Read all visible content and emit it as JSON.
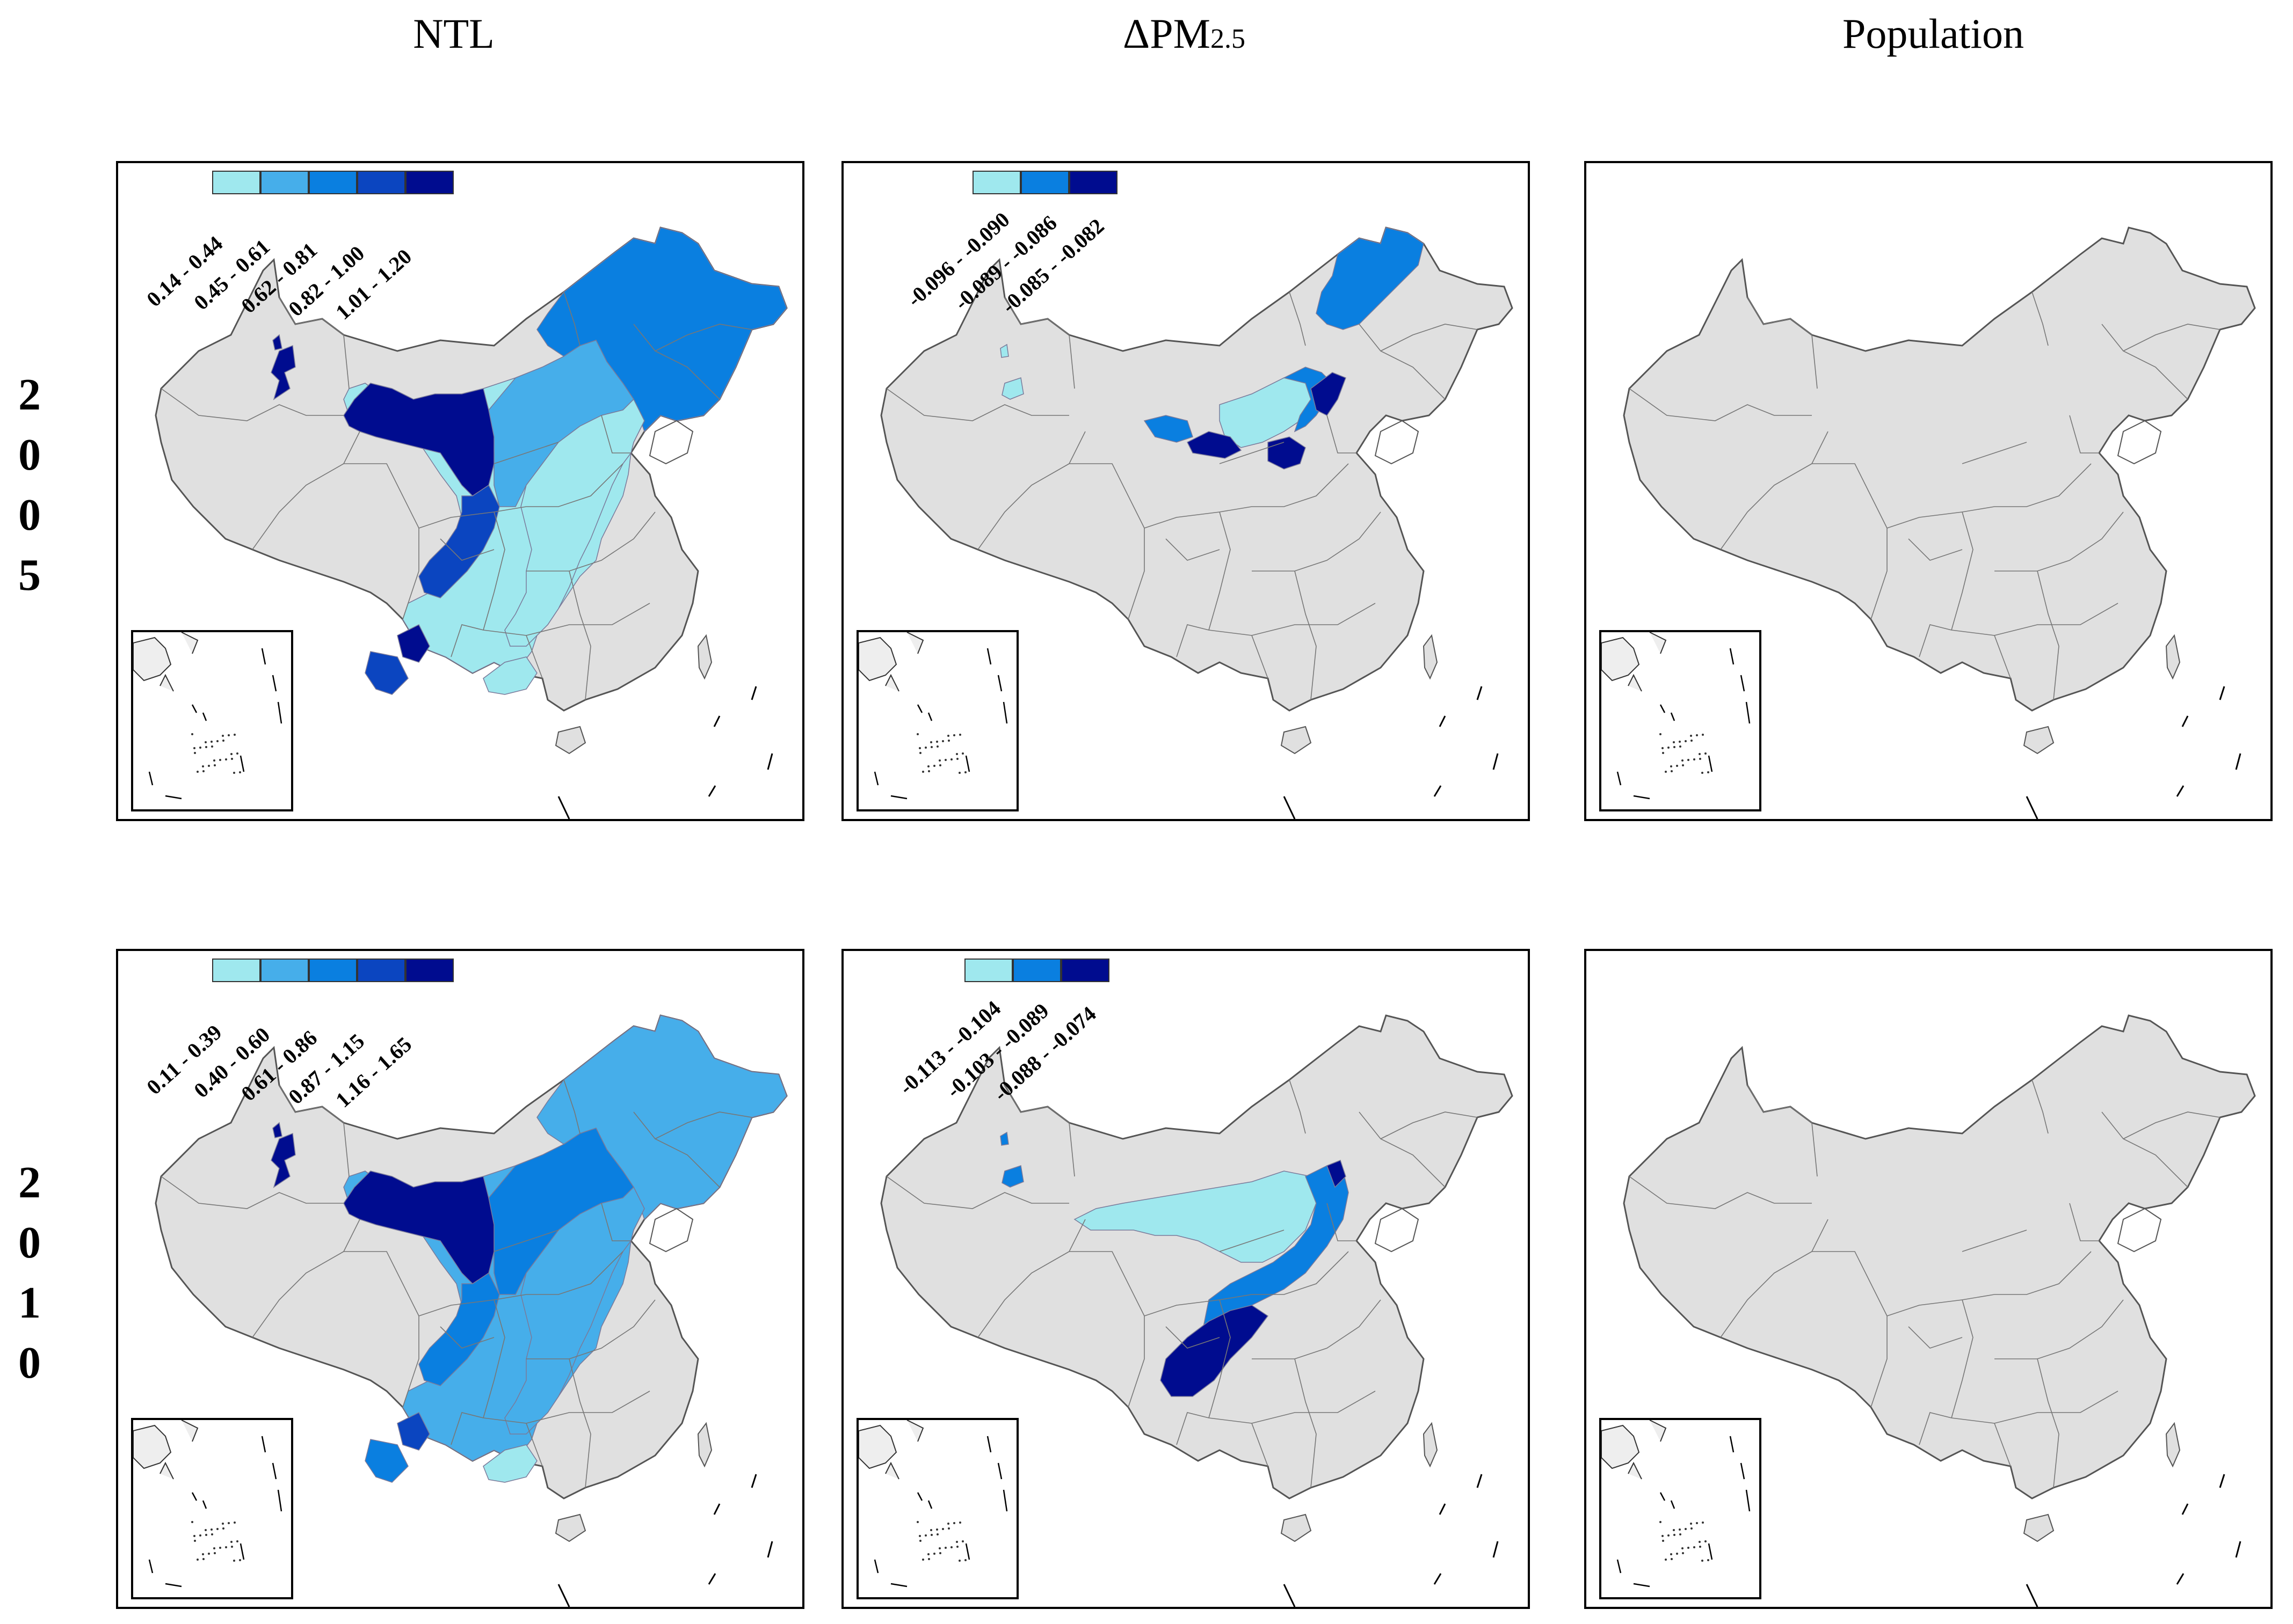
{
  "column_titles": {
    "ntl": "NTL",
    "delta_symbol": "ΔPM",
    "delta_subscript": "2.5",
    "population": "Population"
  },
  "rows": [
    {
      "year_digits": [
        "2",
        "0",
        "0",
        "5"
      ]
    },
    {
      "year_digits": [
        "2",
        "0",
        "1",
        "0"
      ]
    }
  ],
  "legends": {
    "ntl_2005": [
      "0.14 - 0.44",
      "0.45 - 0.61",
      "0.62 - 0.81",
      "0.82 - 1.00",
      "1.01 - 1.20"
    ],
    "pm_2005": [
      "-0.096 - -0.090",
      "-0.089 - -0.086",
      "-0.085 - -0.082"
    ],
    "ntl_2010": [
      "0.11 - 0.39",
      "0.40 - 0.60",
      "0.61 - 0.86",
      "0.87 - 1.15",
      "1.16 - 1.65"
    ],
    "pm_2010": [
      "-0.113 - -0.104",
      "-0.103 - -0.089",
      "-0.088 - -0.074"
    ]
  },
  "colors": {
    "base": "#e0e0e0",
    "c5": [
      "#9fe8ee",
      "#46aeea",
      "#0a7fe0",
      "#0b45c0",
      "#000c8f"
    ],
    "c3": [
      "#9fe8ee",
      "#0a7fe0",
      "#000c8f"
    ]
  }
}
